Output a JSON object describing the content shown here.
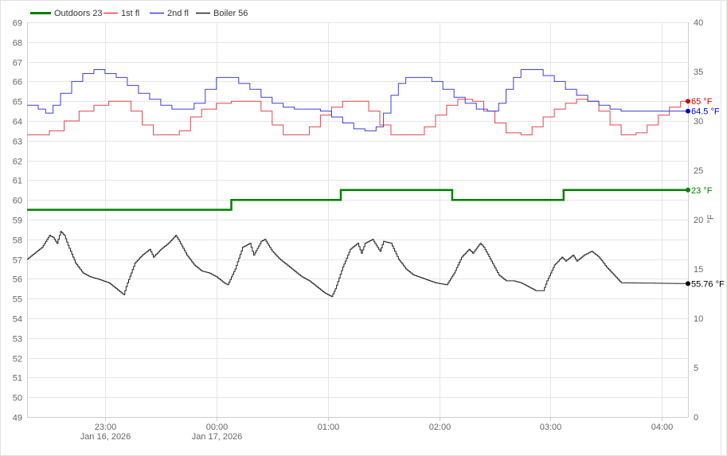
{
  "chart_data": {
    "type": "line",
    "legend": {
      "placement": "top-left",
      "items": [
        {
          "label": "Outdoors 23",
          "color": "#008000"
        },
        {
          "label": "1st fl",
          "color": "#e0454d"
        },
        {
          "label": "2nd fl",
          "color": "#3d3ddc"
        },
        {
          "label": "Boiler 56",
          "color": "#222222"
        }
      ]
    },
    "x_axis": {
      "ticks": [
        {
          "t": 100,
          "label": "23:00",
          "sub": "Jan 16, 2026"
        },
        {
          "t": 160,
          "label": "00:00",
          "sub": "Jan 17, 2026"
        },
        {
          "t": 220,
          "label": "01:00",
          "sub": ""
        },
        {
          "t": 280,
          "label": "02:00",
          "sub": ""
        },
        {
          "t": 340,
          "label": "03:00",
          "sub": ""
        },
        {
          "t": 400,
          "label": "04:00",
          "sub": ""
        }
      ],
      "range": [
        58,
        414
      ]
    },
    "y_left": {
      "min": 49,
      "max": 69,
      "step": 1
    },
    "y_right": {
      "min": 0,
      "max": 40,
      "step": 5,
      "label": "°F"
    },
    "grid": true,
    "series": [
      {
        "name": "Outdoors 23",
        "axis": "right",
        "color": "#008000",
        "width": 2.5,
        "points": [
          [
            58,
            21
          ],
          [
            168,
            21
          ],
          [
            168,
            22
          ],
          [
            227,
            22
          ],
          [
            227,
            23
          ],
          [
            287,
            23
          ],
          [
            287,
            22
          ],
          [
            347,
            22
          ],
          [
            347,
            23
          ],
          [
            414,
            23
          ]
        ],
        "end_label": "23 °F"
      },
      {
        "name": "1st fl",
        "axis": "left",
        "color": "#e0454d",
        "width": 1,
        "points": [
          [
            58,
            63.3
          ],
          [
            64,
            63.3
          ],
          [
            70,
            63.5
          ],
          [
            78,
            64
          ],
          [
            86,
            64.5
          ],
          [
            94,
            64.8
          ],
          [
            102,
            65
          ],
          [
            108,
            65
          ],
          [
            114,
            64.5
          ],
          [
            120,
            63.8
          ],
          [
            126,
            63.3
          ],
          [
            134,
            63.3
          ],
          [
            140,
            63.5
          ],
          [
            146,
            64.2
          ],
          [
            152,
            64.6
          ],
          [
            160,
            64.9
          ],
          [
            168,
            65
          ],
          [
            178,
            65
          ],
          [
            184,
            64.5
          ],
          [
            190,
            63.8
          ],
          [
            196,
            63.3
          ],
          [
            204,
            63.3
          ],
          [
            210,
            63.7
          ],
          [
            216,
            64.3
          ],
          [
            222,
            64.7
          ],
          [
            228,
            65
          ],
          [
            236,
            65
          ],
          [
            242,
            64.5
          ],
          [
            248,
            63.8
          ],
          [
            254,
            63.3
          ],
          [
            266,
            63.3
          ],
          [
            272,
            63.7
          ],
          [
            278,
            64.3
          ],
          [
            284,
            64.8
          ],
          [
            290,
            65.1
          ],
          [
            298,
            65
          ],
          [
            304,
            64.5
          ],
          [
            310,
            63.9
          ],
          [
            316,
            63.4
          ],
          [
            324,
            63.3
          ],
          [
            330,
            63.7
          ],
          [
            336,
            64.2
          ],
          [
            342,
            64.6
          ],
          [
            348,
            64.9
          ],
          [
            354,
            65.1
          ],
          [
            360,
            65
          ],
          [
            366,
            64.5
          ],
          [
            372,
            63.8
          ],
          [
            378,
            63.3
          ],
          [
            386,
            63.4
          ],
          [
            392,
            63.8
          ],
          [
            398,
            64.3
          ],
          [
            404,
            64.7
          ],
          [
            410,
            65
          ],
          [
            414,
            65
          ]
        ],
        "end_label": "65 °F"
      },
      {
        "name": "2nd fl",
        "axis": "left",
        "color": "#3d3ddc",
        "width": 1,
        "points": [
          [
            58,
            64.8
          ],
          [
            64,
            64.6
          ],
          [
            68,
            64.4
          ],
          [
            72,
            64.8
          ],
          [
            76,
            65.4
          ],
          [
            82,
            66
          ],
          [
            88,
            66.4
          ],
          [
            94,
            66.6
          ],
          [
            100,
            66.4
          ],
          [
            106,
            66.2
          ],
          [
            112,
            65.8
          ],
          [
            118,
            65.4
          ],
          [
            124,
            65.1
          ],
          [
            130,
            64.8
          ],
          [
            136,
            64.6
          ],
          [
            142,
            64.6
          ],
          [
            148,
            64.9
          ],
          [
            154,
            65.6
          ],
          [
            160,
            66.2
          ],
          [
            166,
            66.2
          ],
          [
            172,
            65.9
          ],
          [
            178,
            65.6
          ],
          [
            184,
            65.2
          ],
          [
            190,
            64.9
          ],
          [
            196,
            64.7
          ],
          [
            202,
            64.6
          ],
          [
            210,
            64.6
          ],
          [
            216,
            64.5
          ],
          [
            222,
            64.2
          ],
          [
            228,
            63.9
          ],
          [
            234,
            63.6
          ],
          [
            240,
            63.5
          ],
          [
            246,
            63.7
          ],
          [
            250,
            64.4
          ],
          [
            254,
            65.3
          ],
          [
            258,
            65.9
          ],
          [
            262,
            66.2
          ],
          [
            270,
            66.2
          ],
          [
            276,
            66
          ],
          [
            282,
            65.6
          ],
          [
            288,
            65.2
          ],
          [
            294,
            64.9
          ],
          [
            300,
            64.6
          ],
          [
            306,
            64.5
          ],
          [
            312,
            64.9
          ],
          [
            316,
            65.6
          ],
          [
            320,
            66.2
          ],
          [
            324,
            66.6
          ],
          [
            330,
            66.6
          ],
          [
            336,
            66.3
          ],
          [
            342,
            66
          ],
          [
            348,
            65.6
          ],
          [
            354,
            65.3
          ],
          [
            360,
            65
          ],
          [
            366,
            64.8
          ],
          [
            372,
            64.6
          ],
          [
            378,
            64.5
          ],
          [
            384,
            64.5
          ],
          [
            390,
            64.5
          ],
          [
            396,
            64.5
          ],
          [
            402,
            64.5
          ],
          [
            408,
            64.5
          ],
          [
            414,
            64.5
          ]
        ],
        "end_label": "64.5 °F"
      },
      {
        "name": "Boiler 56",
        "axis": "left",
        "color": "#222222",
        "width": 1,
        "jitter": true,
        "points": [
          [
            58,
            57
          ],
          [
            62,
            57.3
          ],
          [
            66,
            57.6
          ],
          [
            70,
            58.2
          ],
          [
            72,
            58.1
          ],
          [
            74,
            57.8
          ],
          [
            76,
            58.4
          ],
          [
            78,
            58.2
          ],
          [
            80,
            57.7
          ],
          [
            84,
            56.8
          ],
          [
            88,
            56.3
          ],
          [
            92,
            56.1
          ],
          [
            96,
            56
          ],
          [
            102,
            55.8
          ],
          [
            106,
            55.5
          ],
          [
            110,
            55.2
          ],
          [
            112,
            55.8
          ],
          [
            116,
            56.8
          ],
          [
            120,
            57.2
          ],
          [
            124,
            57.5
          ],
          [
            126,
            57.1
          ],
          [
            130,
            57.5
          ],
          [
            134,
            57.8
          ],
          [
            138,
            58.2
          ],
          [
            140,
            57.9
          ],
          [
            144,
            57.2
          ],
          [
            148,
            56.7
          ],
          [
            152,
            56.4
          ],
          [
            156,
            56.3
          ],
          [
            160,
            56.1
          ],
          [
            164,
            55.8
          ],
          [
            166,
            55.7
          ],
          [
            170,
            56.5
          ],
          [
            174,
            57.6
          ],
          [
            178,
            57.8
          ],
          [
            180,
            57.2
          ],
          [
            184,
            57.9
          ],
          [
            186,
            58
          ],
          [
            190,
            57.4
          ],
          [
            194,
            57
          ],
          [
            198,
            56.7
          ],
          [
            202,
            56.4
          ],
          [
            206,
            56.1
          ],
          [
            210,
            55.9
          ],
          [
            214,
            55.6
          ],
          [
            218,
            55.3
          ],
          [
            222,
            55.1
          ],
          [
            224,
            55.5
          ],
          [
            228,
            56.6
          ],
          [
            232,
            57.5
          ],
          [
            236,
            57.8
          ],
          [
            238,
            57.3
          ],
          [
            240,
            57.8
          ],
          [
            244,
            58
          ],
          [
            248,
            57.4
          ],
          [
            250,
            57.9
          ],
          [
            254,
            57.8
          ],
          [
            258,
            57
          ],
          [
            262,
            56.5
          ],
          [
            266,
            56.2
          ],
          [
            272,
            56
          ],
          [
            278,
            55.8
          ],
          [
            284,
            55.7
          ],
          [
            288,
            56.3
          ],
          [
            292,
            57.1
          ],
          [
            296,
            57.5
          ],
          [
            298,
            57.3
          ],
          [
            302,
            57.8
          ],
          [
            304,
            57.6
          ],
          [
            308,
            56.9
          ],
          [
            312,
            56.2
          ],
          [
            316,
            55.9
          ],
          [
            320,
            55.9
          ],
          [
            324,
            55.8
          ],
          [
            328,
            55.6
          ],
          [
            332,
            55.4
          ],
          [
            336,
            55.4
          ],
          [
            338,
            55.9
          ],
          [
            342,
            56.7
          ],
          [
            346,
            57.1
          ],
          [
            348,
            56.9
          ],
          [
            352,
            57.2
          ],
          [
            354,
            56.9
          ],
          [
            358,
            57.2
          ],
          [
            362,
            57.4
          ],
          [
            366,
            57.1
          ],
          [
            370,
            56.6
          ],
          [
            374,
            56.2
          ],
          [
            378,
            55.8
          ],
          [
            414,
            55.76
          ]
        ],
        "end_label": "55.76 °F"
      }
    ]
  }
}
